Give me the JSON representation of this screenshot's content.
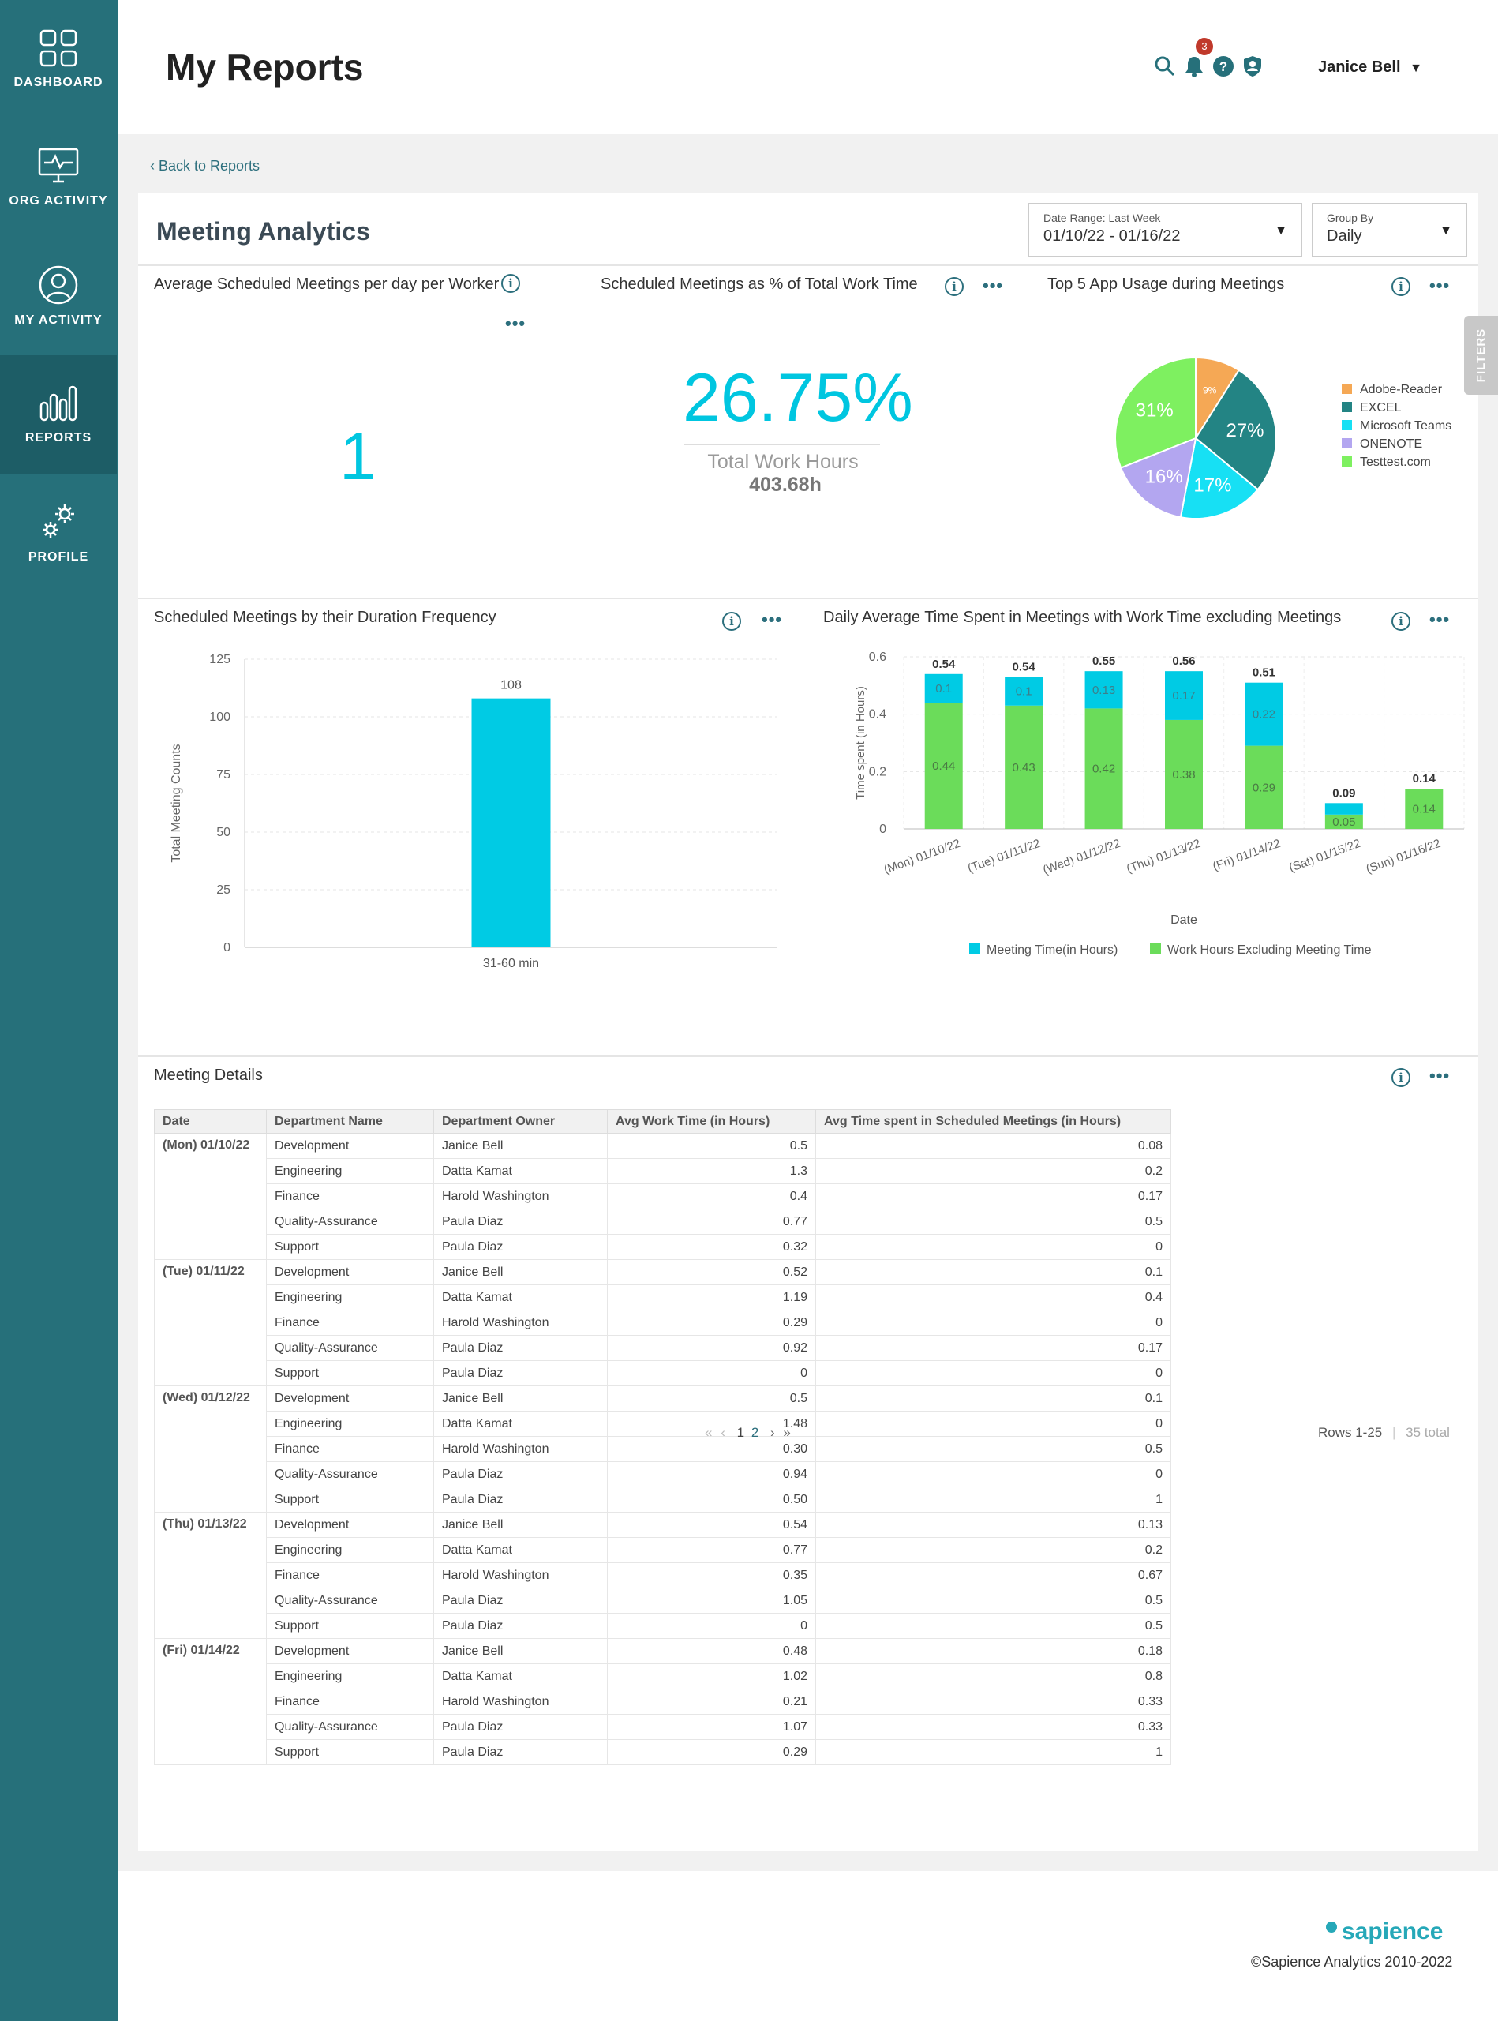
{
  "sidebar": {
    "items": [
      {
        "label": "DASHBOARD"
      },
      {
        "label": "ORG ACTIVITY"
      },
      {
        "label": "MY ACTIVITY"
      },
      {
        "label": "REPORTS"
      },
      {
        "label": "PROFILE"
      }
    ],
    "active": "REPORTS"
  },
  "header": {
    "title": "My Reports",
    "notifications": "3",
    "user": "Janice Bell",
    "icons": [
      "search-icon",
      "bell-icon",
      "help-icon",
      "shield-icon"
    ]
  },
  "nav": {
    "back": "Back to Reports"
  },
  "panel": {
    "title": "Meeting Analytics",
    "date_range_label": "Date Range: Last Week",
    "date_range_value": "01/10/22 - 01/16/22",
    "group_by_label": "Group By",
    "group_by_value": "Daily",
    "filters": "FILTERS"
  },
  "cards": {
    "avg_meetings": {
      "title": "Average Scheduled Meetings per day per Worker",
      "value": "1"
    },
    "pct_meetings": {
      "title": "Scheduled Meetings as % of Total Work Time",
      "value": "26.75%",
      "sub_label": "Total Work Hours",
      "sub_value": "403.68h"
    },
    "app_usage": {
      "title": "Top 5 App Usage during Meetings"
    },
    "duration": {
      "title": "Scheduled Meetings by their Duration Frequency"
    },
    "daily_avg": {
      "title": "Daily Average Time Spent in Meetings with Work Time excluding Meetings"
    }
  },
  "colors": {
    "accent": "#26707a",
    "cyan": "#00cbe4",
    "green": "#6bdc5a",
    "teal": "#238484",
    "orange": "#f5a855",
    "lavender": "#b3a6f0",
    "lime": "#7ef060"
  },
  "chart_data": [
    {
      "type": "pie",
      "title": "Top 5 App Usage during Meetings",
      "categories": [
        "Adobe-Reader",
        "EXCEL",
        "Microsoft Teams",
        "ONENOTE",
        "Testtest.com"
      ],
      "values": [
        9,
        27,
        17,
        16,
        31
      ],
      "labels": [
        "9%",
        "27%",
        "17%",
        "16%",
        "31%"
      ],
      "colors": [
        "#f5a855",
        "#238484",
        "#17e0f4",
        "#b3a6f0",
        "#7ef060"
      ],
      "legend": "right"
    },
    {
      "type": "bar",
      "title": "Scheduled Meetings by their Duration Frequency",
      "categories": [
        "31-60 min"
      ],
      "values": [
        108
      ],
      "ylabel": "Total Meeting Counts",
      "xlabel": "",
      "ylim": [
        0,
        125
      ],
      "yticks": [
        0,
        25,
        50,
        75,
        100,
        125
      ],
      "grid": true
    },
    {
      "type": "bar",
      "stacked": true,
      "title": "Daily Average Time Spent in Meetings with Work Time excluding Meetings",
      "categories": [
        "(Mon) 01/10/22",
        "(Tue) 01/11/22",
        "(Wed) 01/12/22",
        "(Thu) 01/13/22",
        "(Fri) 01/14/22",
        "(Sat) 01/15/22",
        "(Sun) 01/16/22"
      ],
      "series": [
        {
          "name": "Meeting Time(in Hours)",
          "values": [
            0.1,
            0.1,
            0.13,
            0.17,
            0.22,
            0.04,
            0
          ],
          "labels": [
            "0.1",
            "0.1",
            "0.13",
            "0.17",
            "0.22",
            "",
            ""
          ]
        },
        {
          "name": "Work Hours Excluding Meeting Time",
          "values": [
            0.44,
            0.43,
            0.42,
            0.38,
            0.29,
            0.05,
            0.14
          ],
          "labels": [
            "0.44",
            "0.43",
            "0.42",
            "0.38",
            "0.29",
            "0.05",
            "0.14"
          ]
        }
      ],
      "totals": [
        "0.54",
        "0.54",
        "0.55",
        "0.56",
        "0.51",
        "0.09",
        "0.14"
      ],
      "xlabel": "Date",
      "ylabel": "Time spent (in Hours)",
      "ylim": [
        0,
        0.6
      ],
      "yticks": [
        0,
        0.2,
        0.4,
        0.6
      ],
      "legend": "bottom",
      "grid": true
    }
  ],
  "table": {
    "title": "Meeting Details",
    "columns": [
      "Date",
      "Department Name",
      "Department Owner",
      "Avg Work Time (in Hours)",
      "Avg Time spent in Scheduled Meetings (in Hours)"
    ],
    "groups": [
      {
        "date": "(Mon) 01/10/22",
        "rows": [
          [
            "Development",
            "Janice Bell",
            "0.5",
            "0.08"
          ],
          [
            "Engineering",
            "Datta Kamat",
            "1.3",
            "0.2"
          ],
          [
            "Finance",
            "Harold Washington",
            "0.4",
            "0.17"
          ],
          [
            "Quality-Assurance",
            "Paula Diaz",
            "0.77",
            "0.5"
          ],
          [
            "Support",
            "Paula Diaz",
            "0.32",
            "0"
          ]
        ]
      },
      {
        "date": "(Tue) 01/11/22",
        "rows": [
          [
            "Development",
            "Janice Bell",
            "0.52",
            "0.1"
          ],
          [
            "Engineering",
            "Datta Kamat",
            "1.19",
            "0.4"
          ],
          [
            "Finance",
            "Harold Washington",
            "0.29",
            "0"
          ],
          [
            "Quality-Assurance",
            "Paula Diaz",
            "0.92",
            "0.17"
          ],
          [
            "Support",
            "Paula Diaz",
            "0",
            "0"
          ]
        ]
      },
      {
        "date": "(Wed) 01/12/22",
        "rows": [
          [
            "Development",
            "Janice Bell",
            "0.5",
            "0.1"
          ],
          [
            "Engineering",
            "Datta Kamat",
            "1.48",
            "0"
          ],
          [
            "Finance",
            "Harold Washington",
            "0.30",
            "0.5"
          ],
          [
            "Quality-Assurance",
            "Paula Diaz",
            "0.94",
            "0"
          ],
          [
            "Support",
            "Paula Diaz",
            "0.50",
            "1"
          ]
        ]
      },
      {
        "date": "(Thu) 01/13/22",
        "rows": [
          [
            "Development",
            "Janice Bell",
            "0.54",
            "0.13"
          ],
          [
            "Engineering",
            "Datta Kamat",
            "0.77",
            "0.2"
          ],
          [
            "Finance",
            "Harold Washington",
            "0.35",
            "0.67"
          ],
          [
            "Quality-Assurance",
            "Paula Diaz",
            "1.05",
            "0.5"
          ],
          [
            "Support",
            "Paula Diaz",
            "0",
            "0.5"
          ]
        ]
      },
      {
        "date": "(Fri) 01/14/22",
        "rows": [
          [
            "Development",
            "Janice Bell",
            "0.48",
            "0.18"
          ],
          [
            "Engineering",
            "Datta Kamat",
            "1.02",
            "0.8"
          ],
          [
            "Finance",
            "Harold Washington",
            "0.21",
            "0.33"
          ],
          [
            "Quality-Assurance",
            "Paula Diaz",
            "1.07",
            "0.33"
          ],
          [
            "Support",
            "Paula Diaz",
            "0.29",
            "1"
          ]
        ]
      }
    ],
    "pagination": {
      "first": "«",
      "prev": "‹",
      "pages": [
        "1",
        "2"
      ],
      "next": "›",
      "last": "»",
      "rows": "Rows 1-25",
      "total": "35 total"
    }
  },
  "footer": {
    "brand": "sapience",
    "copyright": "©Sapience Analytics 2010-2022"
  }
}
